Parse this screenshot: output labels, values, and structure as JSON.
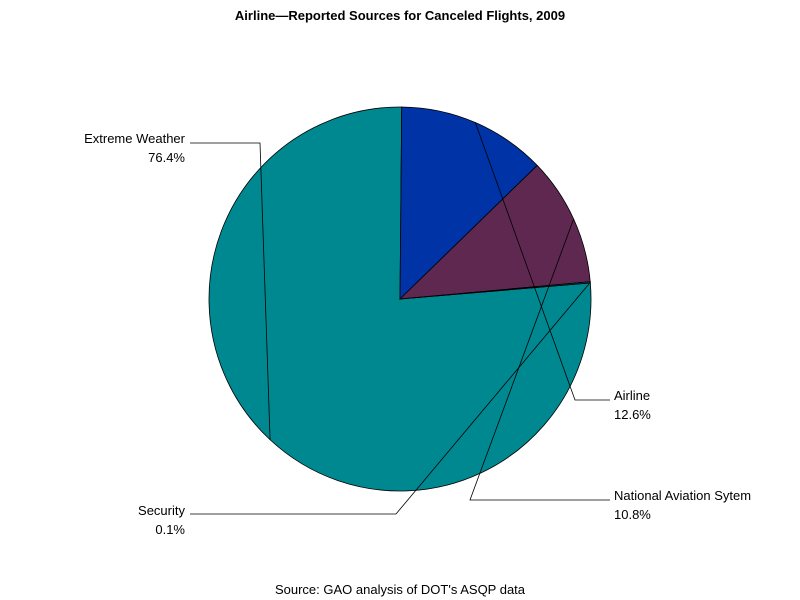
{
  "chart_data": {
    "type": "pie",
    "title": "Airline—Reported Sources for Canceled Flights, 2009",
    "source": "Source: GAO analysis of DOT's ASQP data",
    "slices": [
      {
        "label": "Extreme Weather",
        "value": 76.4,
        "value_label": "76.4%",
        "color": "#008891"
      },
      {
        "label": "Airline",
        "value": 12.6,
        "value_label": "12.6%",
        "color": "#0033A5"
      },
      {
        "label": "National Aviation Sytem",
        "value": 10.8,
        "value_label": "10.8%",
        "color": "#5F2851"
      },
      {
        "label": "Security",
        "value": 0.1,
        "value_label": "0.1%",
        "color": "#008891"
      }
    ]
  }
}
